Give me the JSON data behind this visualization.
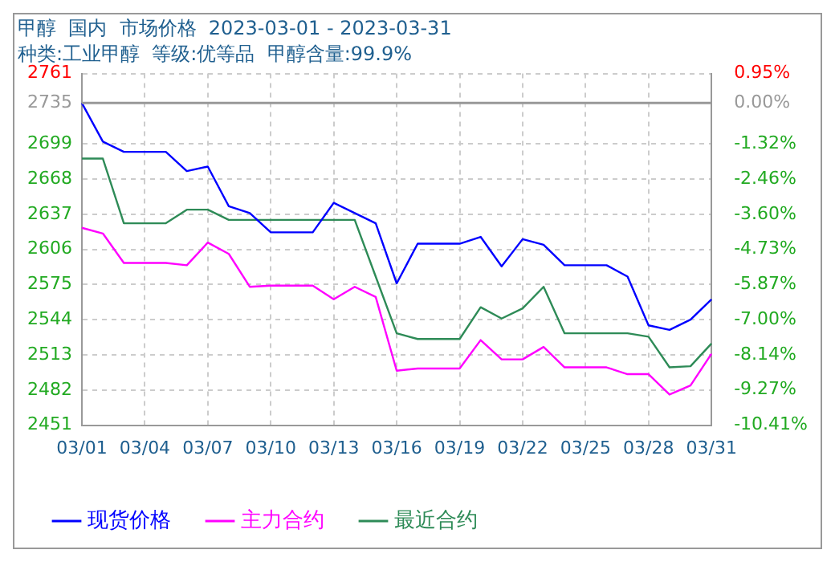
{
  "chart_data": {
    "type": "line",
    "title": "甲醇  国内  市场价格  2023-03-01 - 2023-03-31",
    "subtitle": "种类:工业甲醇  等级:优等品  甲醇含量:99.9%",
    "categories": [
      "03/01",
      null,
      null,
      "03/04",
      null,
      null,
      "03/07",
      null,
      null,
      "03/10",
      null,
      null,
      "03/13",
      null,
      null,
      "03/16",
      null,
      null,
      "03/19",
      null,
      null,
      "03/22",
      null,
      null,
      "03/25",
      null,
      null,
      "03/28",
      null,
      null,
      "03/31"
    ],
    "series": [
      {
        "name": "现货价格",
        "color": "#0000ff",
        "values": [
          2735,
          2701,
          2692,
          2692,
          2692,
          2675,
          2679,
          2644,
          2638,
          2621,
          2621,
          2621,
          2647,
          2638,
          2629,
          2576,
          2611,
          2611,
          2611,
          2617,
          2591,
          2615,
          2610,
          2592,
          2592,
          2592,
          2582,
          2539,
          2535,
          2544,
          2562
        ]
      },
      {
        "name": "主力合约",
        "color": "#ff00ff",
        "values": [
          2625,
          2620,
          2594,
          2594,
          2594,
          2592,
          2612,
          2602,
          2573,
          2574,
          2574,
          2574,
          2562,
          2573,
          2564,
          2499,
          2501,
          2501,
          2501,
          2526,
          2509,
          2509,
          2520,
          2502,
          2502,
          2502,
          2496,
          2496,
          2478,
          2486,
          2514
        ]
      },
      {
        "name": "最近合约",
        "color": "#2e8b57",
        "values": [
          2686,
          2686,
          2629,
          2629,
          2629,
          2641,
          2641,
          2632,
          2632,
          2632,
          2632,
          2632,
          2632,
          2632,
          2582,
          2532,
          2527,
          2527,
          2527,
          2555,
          2545,
          2554,
          2573,
          2532,
          2532,
          2532,
          2532,
          2529,
          2502,
          2503,
          2523
        ]
      }
    ],
    "ylim": [
      2451,
      2761
    ],
    "yticks": [
      2451,
      2482,
      2513,
      2544,
      2575,
      2606,
      2637,
      2668,
      2699,
      2735,
      2761
    ],
    "y2lim": [
      -10.41,
      0.95
    ],
    "y2ticks": [
      {
        "value": -10.41,
        "label": "-10.41%"
      },
      {
        "value": -9.27,
        "label": "-9.27%"
      },
      {
        "value": -8.14,
        "label": "-8.14%"
      },
      {
        "value": -7.0,
        "label": "-7.00%"
      },
      {
        "value": -5.87,
        "label": "-5.87%"
      },
      {
        "value": -4.73,
        "label": "-4.73%"
      },
      {
        "value": -3.6,
        "label": "-3.60%"
      },
      {
        "value": -2.46,
        "label": "-2.46%"
      },
      {
        "value": -1.32,
        "label": "-1.32%"
      },
      {
        "value": 0,
        "label": "0.00%"
      },
      {
        "value": 0.95,
        "label": "0.95%"
      }
    ],
    "ref_lines": [
      {
        "axis": "y",
        "value": 2735,
        "color": "#999999"
      }
    ],
    "grid": true,
    "legend": "bottom",
    "marker": "none",
    "line_style": "solid"
  }
}
